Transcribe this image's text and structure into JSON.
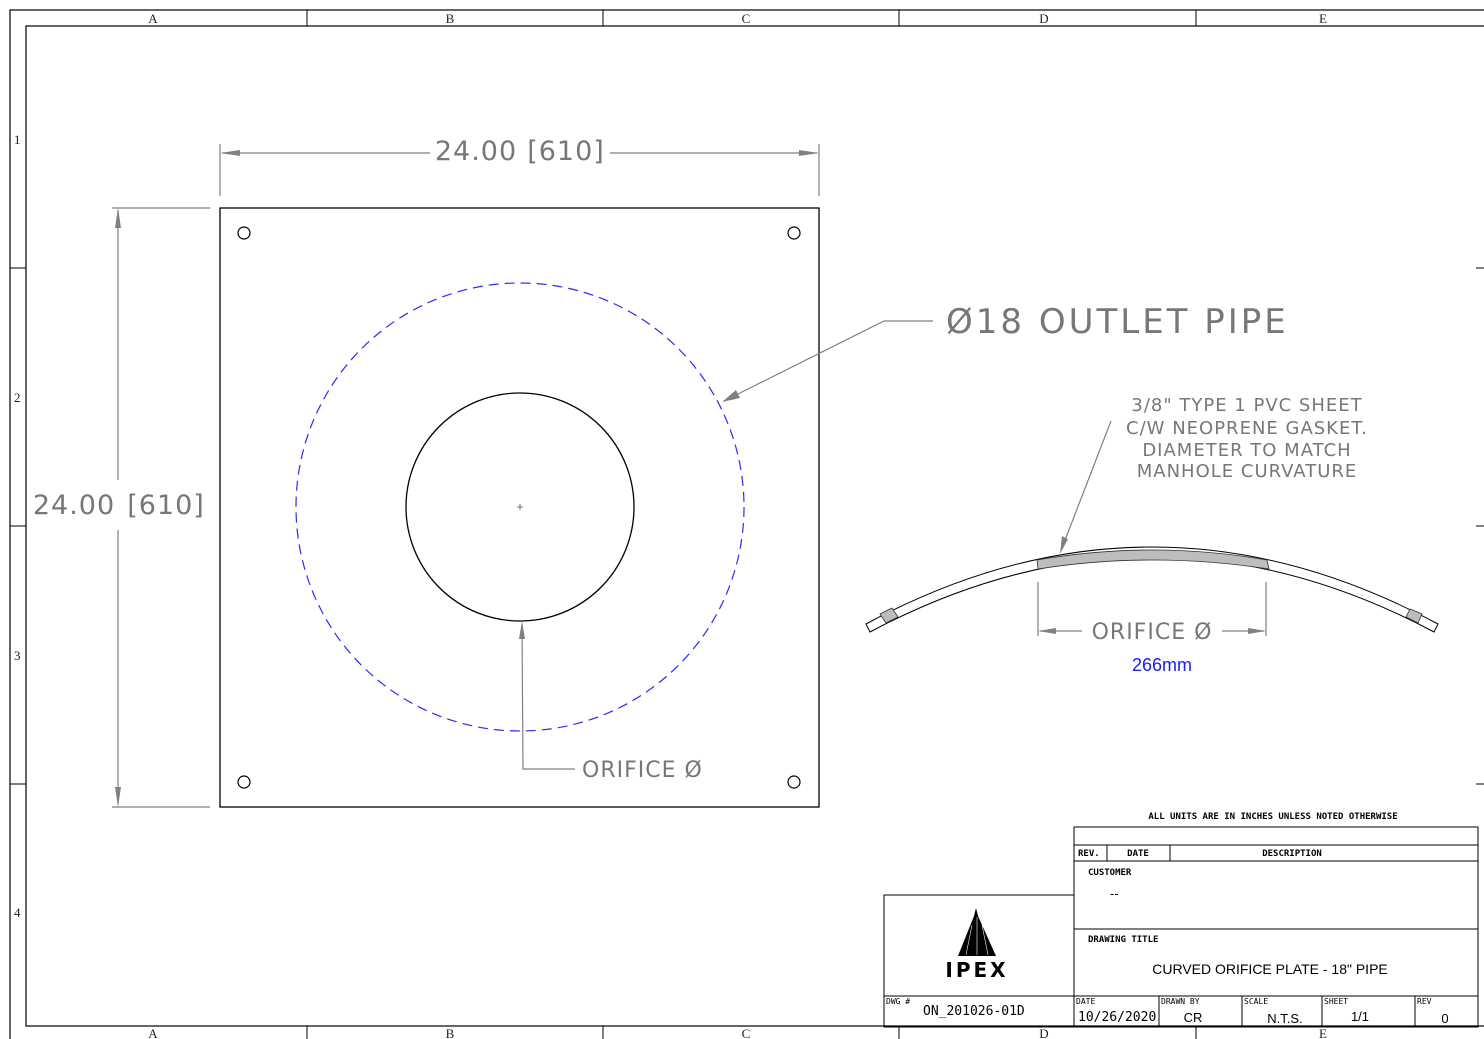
{
  "zones": {
    "columns": [
      "A",
      "B",
      "C",
      "D",
      "E"
    ],
    "rows": [
      "1",
      "2",
      "3",
      "4"
    ]
  },
  "plate": {
    "width_dim": "24.00",
    "width_dim_metric": "[610]",
    "height_dim": "24.00",
    "height_dim_metric": "[610]",
    "outlet_label": "Ø18  OUTLET  PIPE",
    "orifice_label": "ORIFICE  Ø"
  },
  "section": {
    "note_lines": [
      "3/8\"  TYPE  1  PVC  SHEET",
      "C/W  NEOPRENE  GASKET.",
      "DIAMETER  TO  MATCH",
      "MANHOLE  CURVATURE"
    ],
    "orifice_label": "ORIFICE  Ø",
    "orifice_value": "266mm"
  },
  "title_block": {
    "units_note": "ALL  UNITS  ARE  IN  INCHES  UNLESS  NOTED  OTHERWISE",
    "rev_header": "REV.",
    "date_header": "DATE",
    "description_header": "DESCRIPTION",
    "customer_label": "CUSTOMER",
    "customer_value": "--",
    "drawing_title_label": "DRAWING  TITLE",
    "drawing_title": "CURVED ORIFICE PLATE -  18\" PIPE",
    "logo_text": "IPEX",
    "dwg_label": "DWG #",
    "dwg_number": "ON_201026-01D",
    "date_label": "DATE",
    "date_value": "10/26/2020",
    "drawn_by_label": "DRAWN BY",
    "drawn_by_value": "CR",
    "scale_label": "SCALE",
    "scale_value": "N.T.S.",
    "sheet_label": "SHEET",
    "sheet_value": "1/1",
    "rev_label": "REV",
    "rev_value": "0"
  },
  "colors": {
    "frame": "#000000",
    "dimension": "#808080",
    "hidden_line": "#2a2aff",
    "gasket": "#bdbdbd"
  }
}
